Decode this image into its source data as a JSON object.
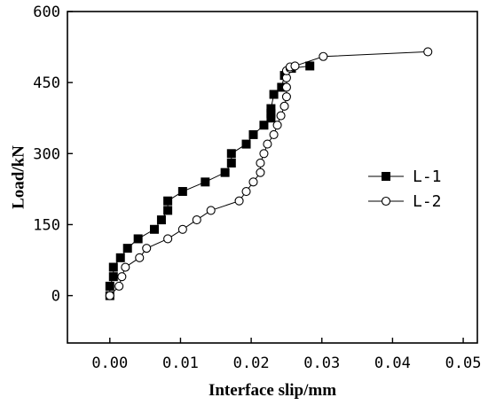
{
  "chart_data": {
    "type": "scatter",
    "title": "",
    "xlabel": "Interface slip/mm",
    "ylabel": "Load/kN",
    "xlim": [
      -0.006,
      0.052
    ],
    "ylim": [
      -100,
      600
    ],
    "xticks": [
      0.0,
      0.01,
      0.02,
      0.03,
      0.04,
      0.05
    ],
    "xtick_labels": [
      "0.00",
      "0.01",
      "0.02",
      "0.03",
      "0.04",
      "0.05"
    ],
    "yticks": [
      0,
      150,
      300,
      450,
      600
    ],
    "ytick_labels": [
      "0",
      "150",
      "300",
      "450",
      "600"
    ],
    "grid": false,
    "legend_position": "right",
    "series": [
      {
        "name": "L-1",
        "marker": "filled-square",
        "color": "#000000",
        "x": [
          0.0,
          0.0,
          0.0005,
          0.0005,
          0.0015,
          0.0025,
          0.004,
          0.0063,
          0.0073,
          0.0082,
          0.0082,
          0.0103,
          0.0135,
          0.0163,
          0.0172,
          0.0172,
          0.0193,
          0.0203,
          0.0218,
          0.0228,
          0.0228,
          0.0228,
          0.0232,
          0.0243,
          0.0247,
          0.0257,
          0.0283
        ],
        "y": [
          0,
          20,
          40,
          60,
          80,
          100,
          120,
          140,
          160,
          180,
          200,
          220,
          240,
          260,
          280,
          300,
          320,
          340,
          360,
          375,
          385,
          395,
          425,
          440,
          465,
          480,
          485
        ]
      },
      {
        "name": "L-2",
        "marker": "open-circle",
        "color": "#000000",
        "x": [
          0.0,
          0.0013,
          0.0017,
          0.0022,
          0.0042,
          0.0052,
          0.0082,
          0.0103,
          0.0123,
          0.0143,
          0.0183,
          0.0193,
          0.0203,
          0.0213,
          0.0213,
          0.0218,
          0.0223,
          0.0232,
          0.0237,
          0.0242,
          0.0247,
          0.025,
          0.025,
          0.025,
          0.025,
          0.0255,
          0.0255,
          0.0262,
          0.0302,
          0.045
        ],
        "y": [
          0,
          20,
          40,
          60,
          80,
          100,
          120,
          140,
          160,
          180,
          200,
          220,
          240,
          260,
          280,
          300,
          320,
          340,
          360,
          380,
          400,
          420,
          440,
          460,
          475,
          480,
          483,
          485,
          505,
          515
        ]
      }
    ]
  }
}
